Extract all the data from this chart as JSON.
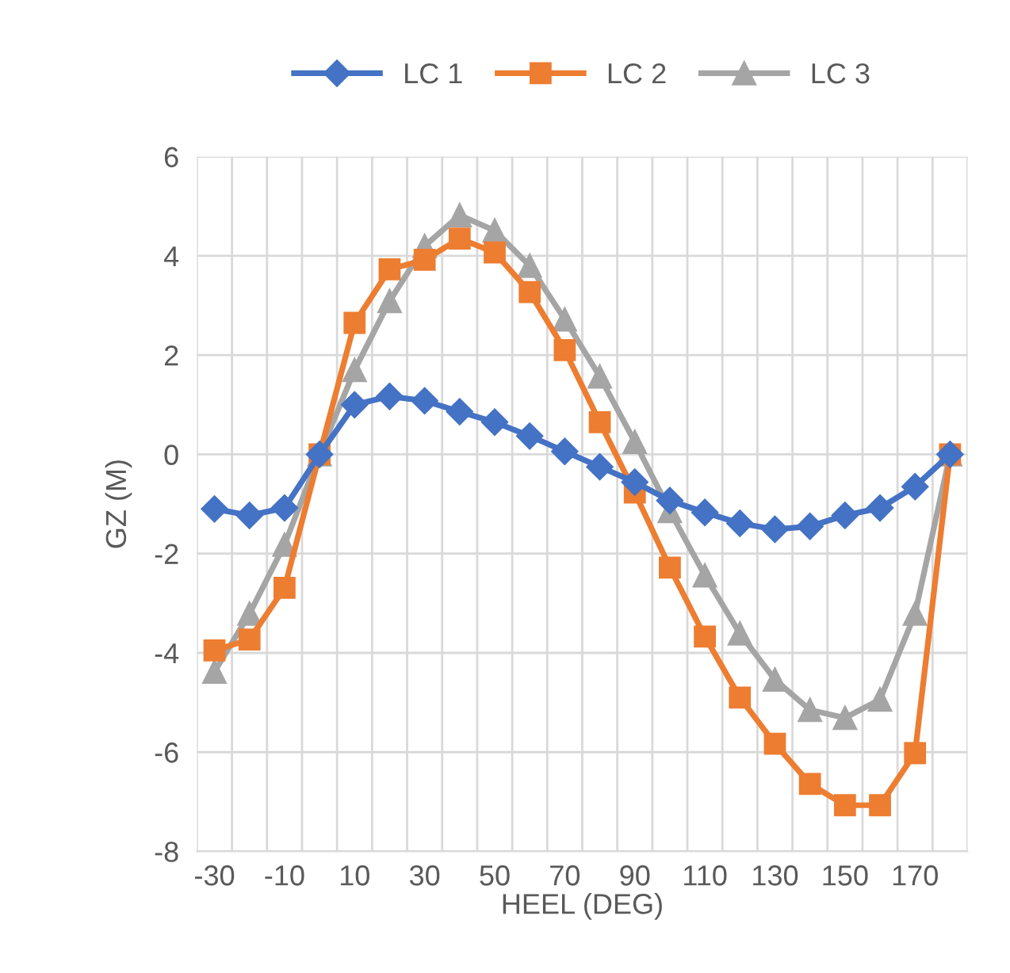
{
  "chart_data": {
    "type": "line",
    "xlabel": "HEEL (DEG)",
    "ylabel": "GZ (M)",
    "categories": [
      "-30",
      null,
      "-10",
      null,
      "10",
      null,
      "30",
      null,
      "50",
      null,
      "70",
      null,
      "90",
      null,
      "110",
      null,
      "130",
      null,
      "150",
      null,
      "170",
      null
    ],
    "series": [
      {
        "name": "LC 1",
        "color": "#4472c4",
        "marker": "diamond",
        "values": [
          -1.1,
          -1.23,
          -1.08,
          0,
          1.0,
          1.17,
          1.08,
          0.86,
          0.65,
          0.37,
          0.06,
          -0.25,
          -0.56,
          -0.93,
          -1.17,
          -1.39,
          -1.51,
          -1.45,
          -1.23,
          -1.08,
          -0.65,
          0
        ]
      },
      {
        "name": "LC 2",
        "color": "#ed7d31",
        "marker": "square",
        "values": [
          -3.95,
          -3.73,
          -2.69,
          0,
          2.65,
          3.73,
          3.92,
          4.35,
          4.07,
          3.27,
          2.1,
          0.65,
          -0.77,
          -2.28,
          -3.67,
          -4.9,
          -5.83,
          -6.64,
          -7.07,
          -7.07,
          -6.02,
          0
        ]
      },
      {
        "name": "LC 3",
        "color": "#a5a5a5",
        "marker": "triangle",
        "values": [
          -4.38,
          -3.21,
          -1.82,
          0,
          1.7,
          3.09,
          4.2,
          4.82,
          4.51,
          3.8,
          2.72,
          1.57,
          0.25,
          -1.14,
          -2.44,
          -3.61,
          -4.54,
          -5.15,
          -5.31,
          -4.94,
          -3.21,
          0
        ]
      }
    ],
    "ylim": [
      -8,
      6
    ],
    "yticks": [
      -8,
      -6,
      -4,
      -2,
      0,
      2,
      4,
      6
    ],
    "grid": true,
    "legend": "top",
    "line_style": "solid"
  }
}
